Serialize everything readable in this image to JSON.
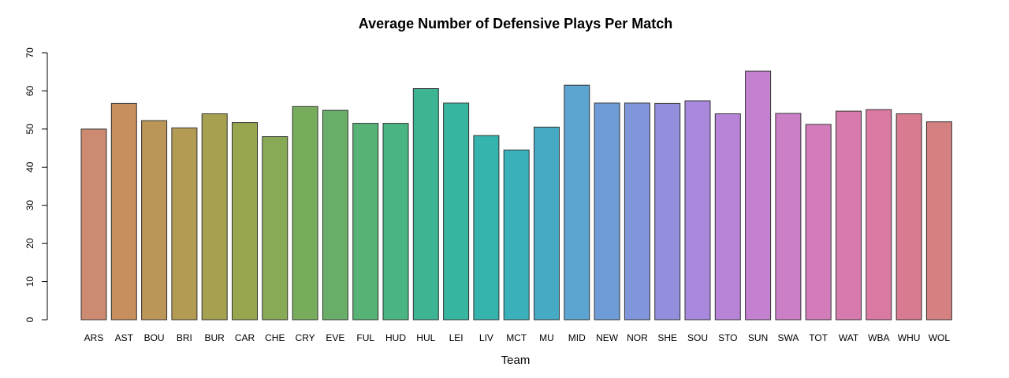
{
  "chart_data": {
    "type": "bar",
    "title": "Average Number of Defensive Plays Per Match",
    "xlabel": "Team",
    "ylabel": "",
    "ylim": [
      0,
      70
    ],
    "yticks": [
      0,
      10,
      20,
      30,
      40,
      50,
      60,
      70
    ],
    "grid": false,
    "categories": [
      "ARS",
      "AST",
      "BOU",
      "BRI",
      "BUR",
      "CAR",
      "CHE",
      "CRY",
      "EVE",
      "FUL",
      "HUD",
      "HUL",
      "LEI",
      "LIV",
      "MCT",
      "MU",
      "MID",
      "NEW",
      "NOR",
      "SHE",
      "SOU",
      "STO",
      "SUN",
      "SWA",
      "TOT",
      "WAT",
      "WBA",
      "WHU",
      "WOL"
    ],
    "values": [
      50.0,
      56.7,
      52.2,
      50.3,
      54.0,
      51.7,
      48.0,
      55.9,
      54.9,
      51.5,
      51.5,
      60.6,
      56.8,
      48.3,
      44.5,
      50.5,
      61.5,
      56.8,
      56.8,
      56.7,
      57.4,
      54.0,
      65.2,
      54.1,
      51.2,
      54.7,
      55.1,
      54.0,
      51.9
    ],
    "colors": [
      "#CC8B71",
      "#C88F5E",
      "#BC9559",
      "#B39B54",
      "#A6A151",
      "#98A650",
      "#88A955",
      "#77AC5D",
      "#69AE68",
      "#57B275",
      "#4AB483",
      "#3DB592",
      "#36B5A0",
      "#35B3AD",
      "#39B0BA",
      "#47AAC5",
      "#5CA4D2",
      "#6D9CD6",
      "#7F96DA",
      "#948FDD",
      "#A889DD",
      "#B784D8",
      "#C381D0",
      "#CB7FC6",
      "#D27CBA",
      "#D77AAE",
      "#DA79A1",
      "#D87B91",
      "#D68181"
    ]
  }
}
